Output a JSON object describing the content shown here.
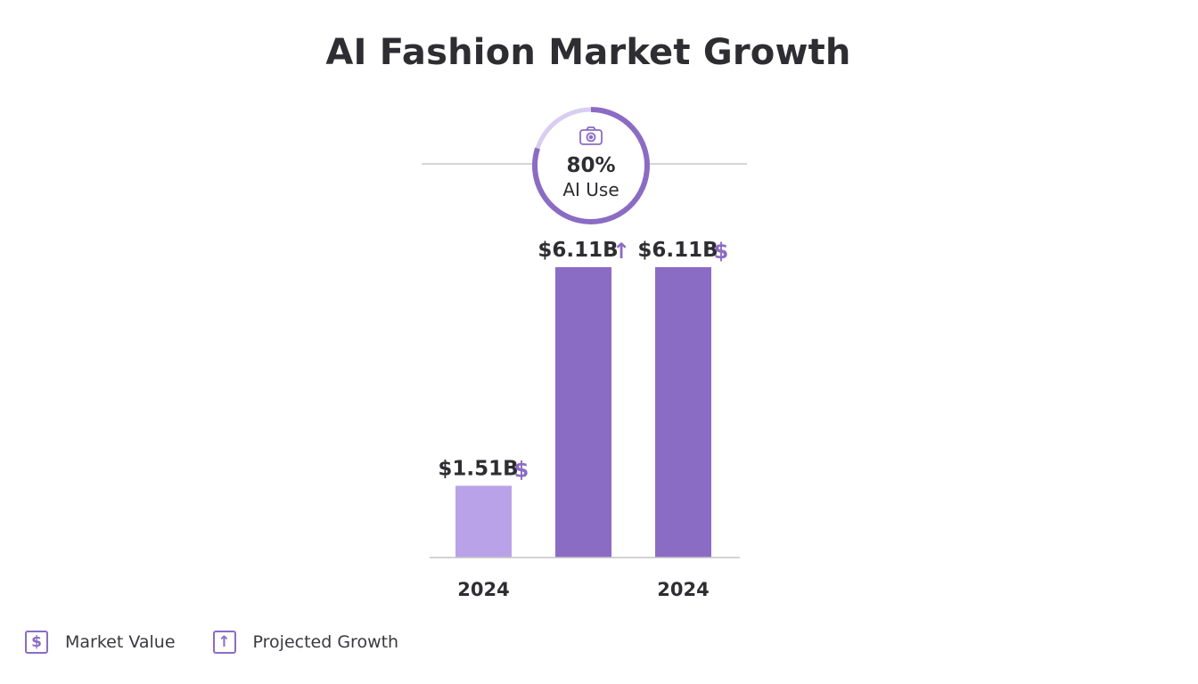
{
  "chart_data": {
    "type": "bar",
    "title": "AI Fashion Market Growth",
    "categories": [
      "2024",
      "",
      "2024"
    ],
    "values": [
      1.51,
      6.11,
      6.11
    ],
    "value_labels": [
      "$1.51B",
      "$6.11B",
      "$6.11B"
    ],
    "value_icons": [
      "dollar-icon",
      "arrow-up-icon",
      "dollar-icon"
    ],
    "value_icon_glyphs": [
      "$",
      "↑",
      "$"
    ],
    "bar_colors": [
      "#b9a2e8",
      "#8b6cc4",
      "#8b6cc4"
    ],
    "unit": "$B",
    "ylim": [
      0,
      6.11
    ],
    "grid": false,
    "legend_position": "bottom-left"
  },
  "gauge": {
    "value_pct": 80,
    "value_text": "80%",
    "label": "AI Use",
    "icon": "camera-icon",
    "track_color": "#d9cdf1",
    "fill_color": "#8b6cc4"
  },
  "legend": [
    {
      "icon": "dollar-icon",
      "glyph": "$",
      "label": "Market Value"
    },
    {
      "icon": "arrow-up-icon",
      "glyph": "↑",
      "label": "Projected Growth"
    }
  ],
  "colors": {
    "accent": "#8b6cc4",
    "accent_light": "#b9a2e8",
    "text": "#2f2f33"
  }
}
